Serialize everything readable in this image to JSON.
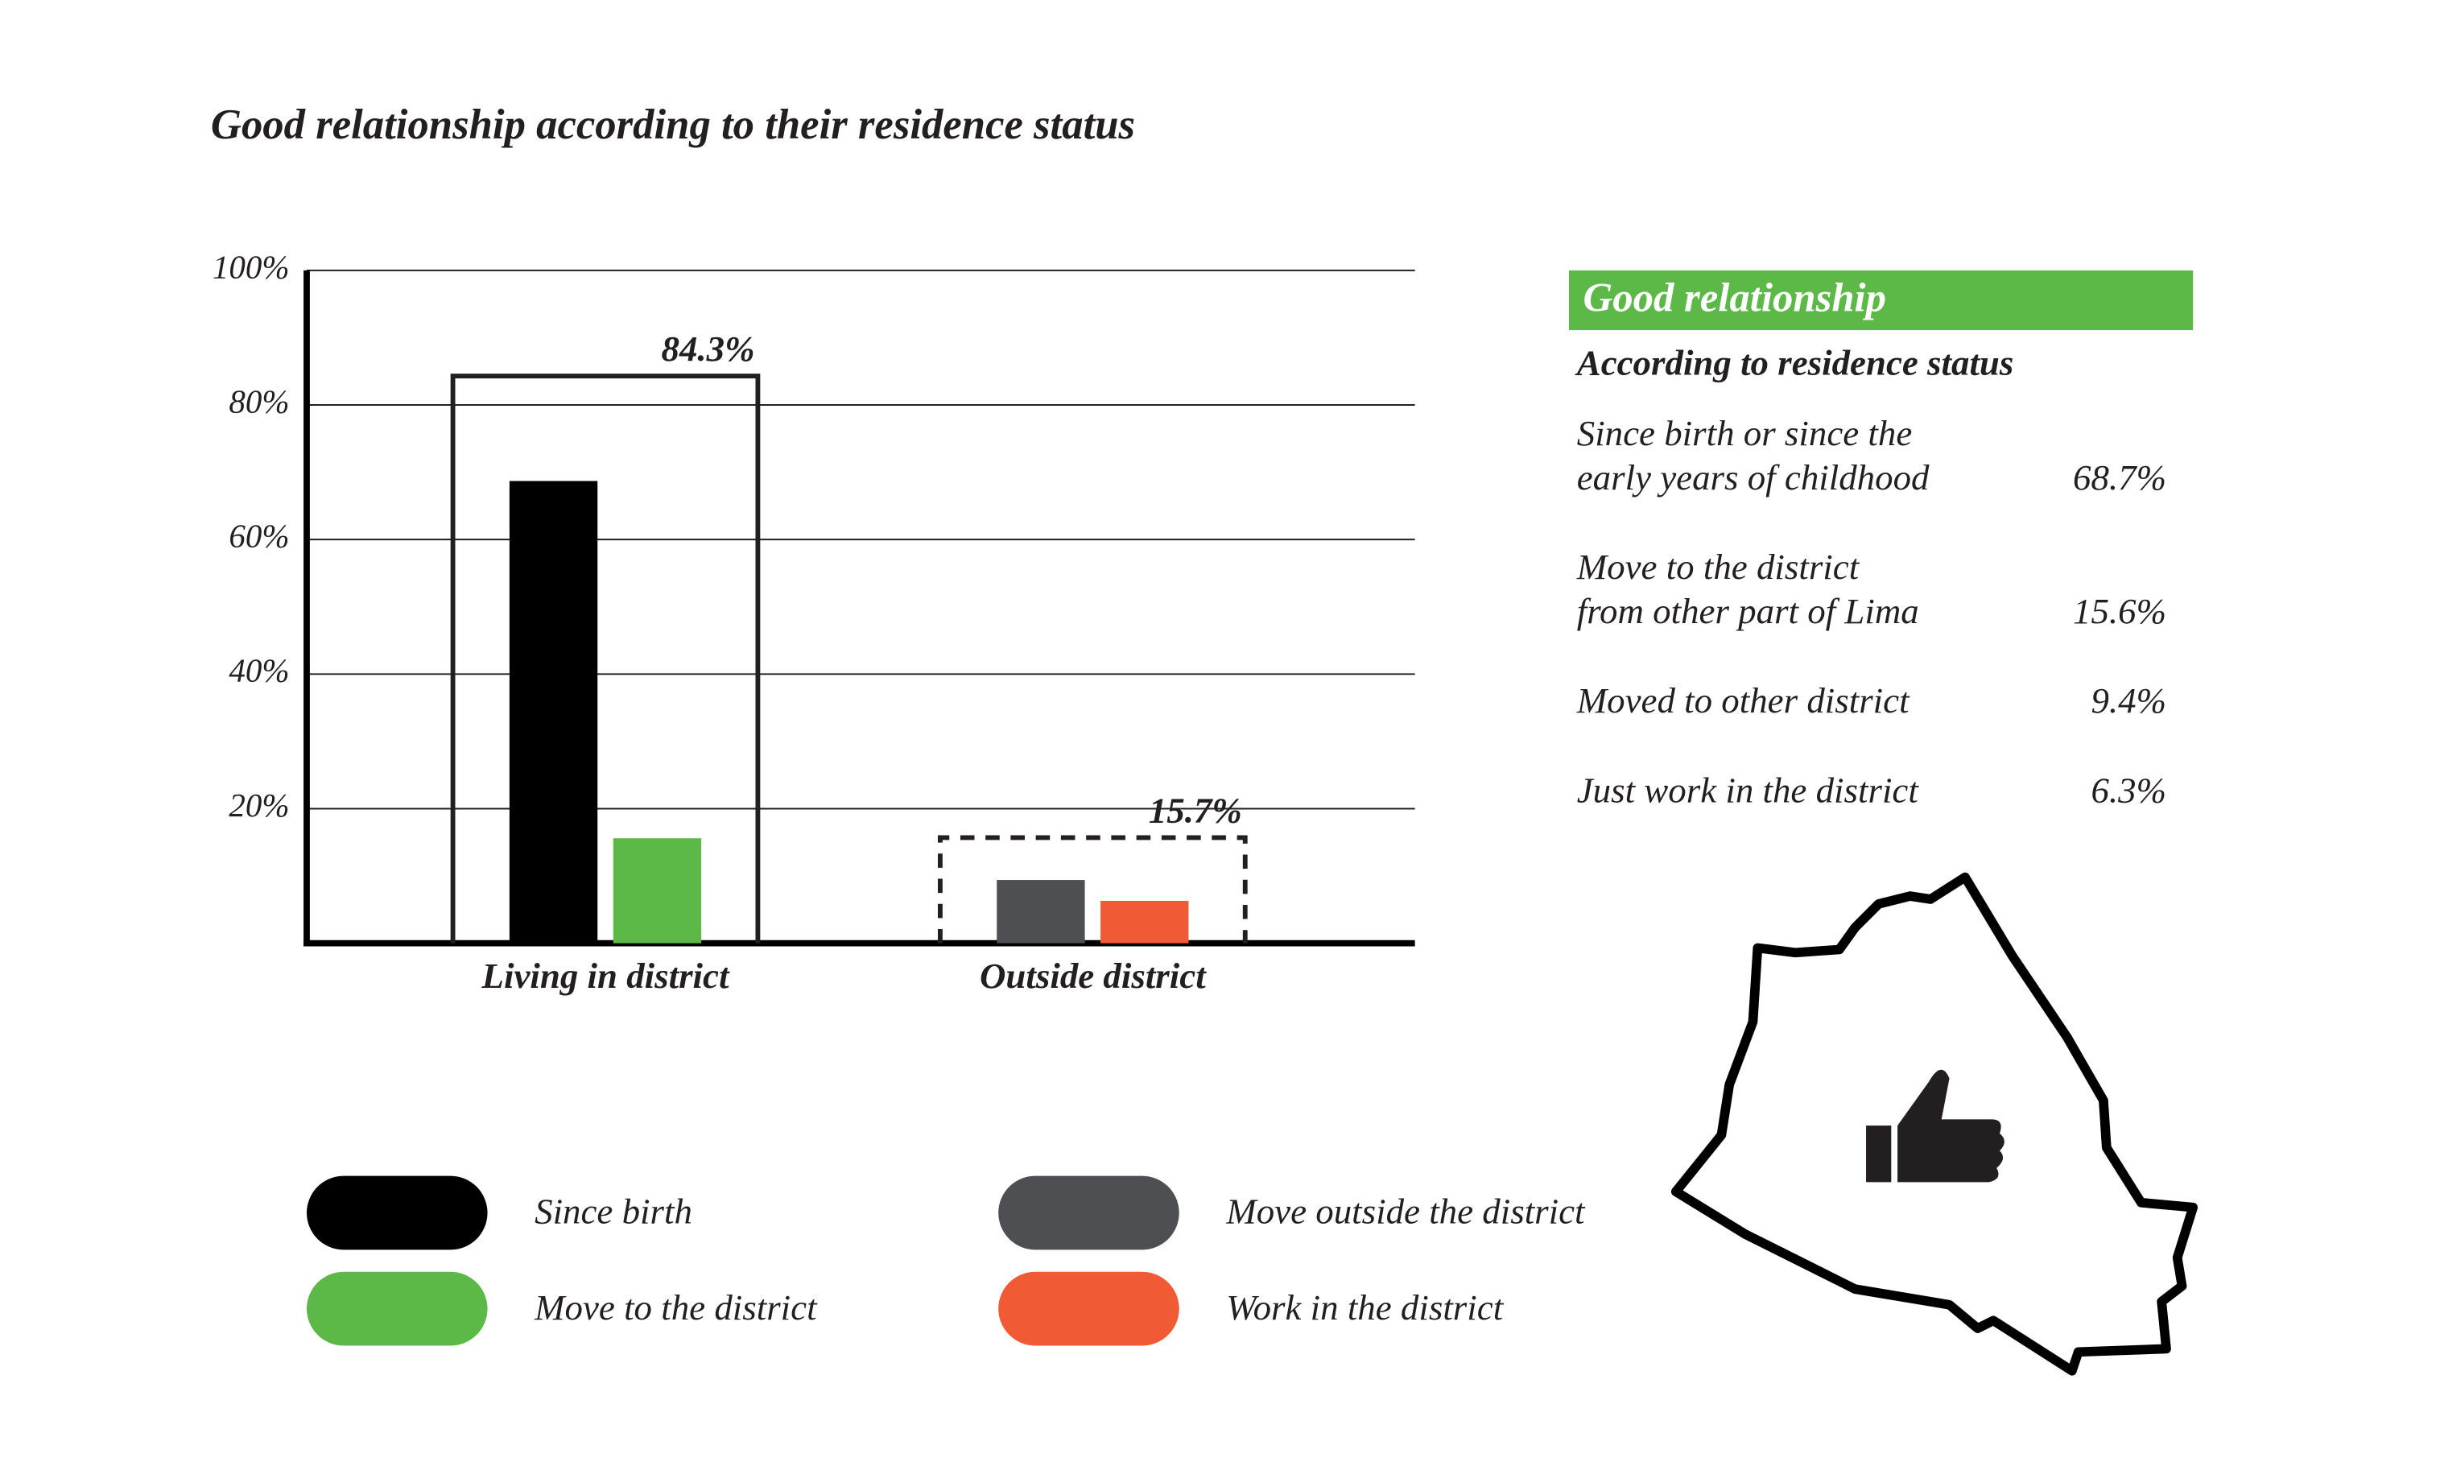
{
  "chart_data": {
    "type": "bar",
    "title": "Good relationship according to their residence status",
    "categories": [
      "Living in district",
      "Outside district"
    ],
    "series": [
      {
        "name": "Since birth",
        "color": "#000000",
        "values": [
          68.7,
          null
        ]
      },
      {
        "name": "Move to the district",
        "color": "#5cb947",
        "values": [
          15.6,
          null
        ]
      },
      {
        "name": "Move outside the district",
        "color": "#4d4f52",
        "values": [
          null,
          9.4
        ]
      },
      {
        "name": "Work in the district",
        "color": "#f05a35",
        "values": [
          null,
          6.3
        ]
      }
    ],
    "totals": [
      84.3,
      15.7
    ],
    "total_labels": [
      "84.3%",
      "15.7%"
    ],
    "total_box_dashed": [
      false,
      true
    ],
    "ylim": [
      0,
      100
    ],
    "yticks": [
      {
        "value": 20,
        "label": "20%"
      },
      {
        "value": 40,
        "label": "40%"
      },
      {
        "value": 60,
        "label": "60%"
      },
      {
        "value": 80,
        "label": "80%"
      },
      {
        "value": 100,
        "label": "100%"
      }
    ],
    "grid": true
  },
  "panel": {
    "title": "Good relationship",
    "subtitle": "According to residence status",
    "rows": [
      {
        "label": [
          "Since birth or since the",
          "early years of childhood"
        ],
        "value": "68.7%"
      },
      {
        "label": [
          "Move to the district",
          "from other part of Lima"
        ],
        "value": "15.6%"
      },
      {
        "label": [
          "Moved to other district"
        ],
        "value": "9.4%"
      },
      {
        "label": [
          "Just work in the district"
        ],
        "value": "6.3%"
      }
    ]
  }
}
